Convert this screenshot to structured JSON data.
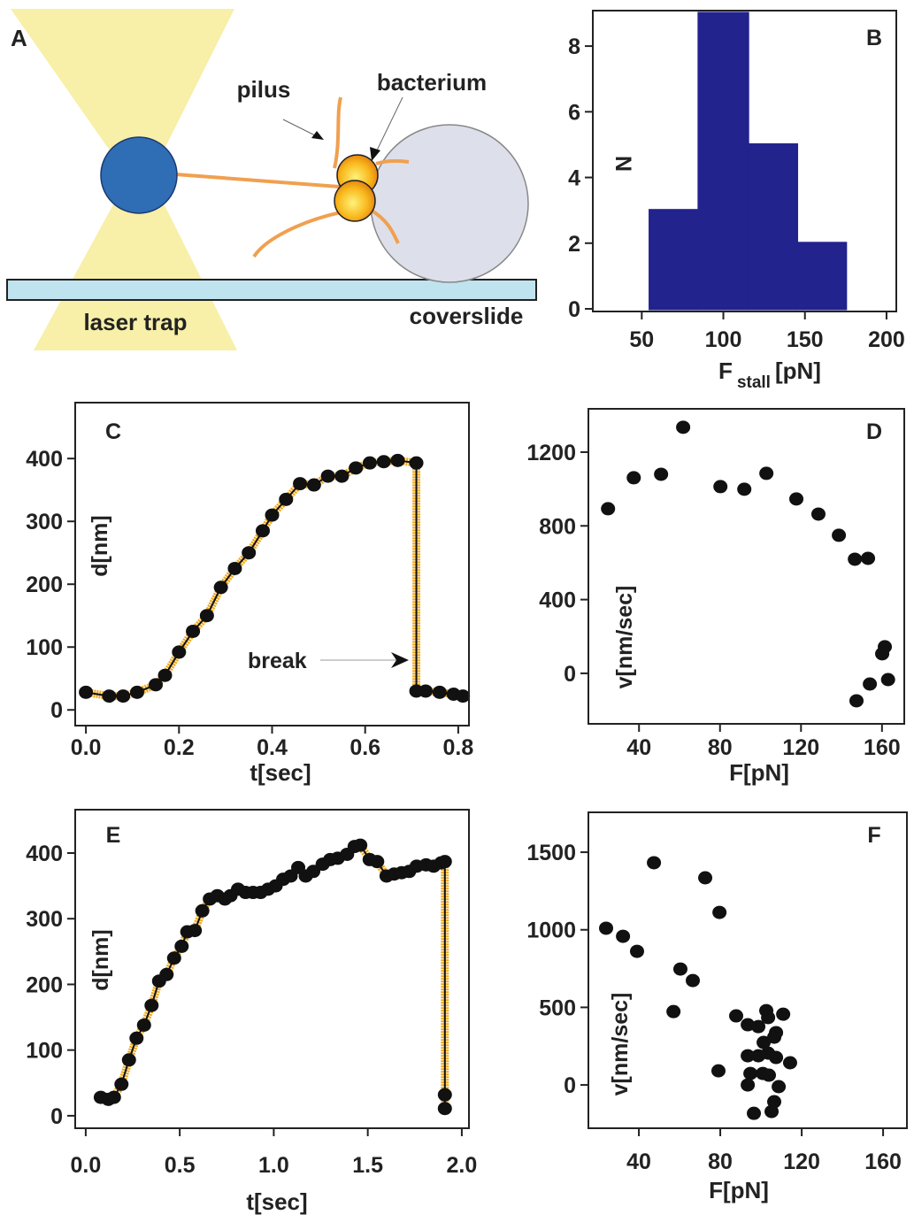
{
  "diagram": {
    "panel": "A",
    "labels": [
      "pilus",
      "bacterium",
      "laser trap",
      "coverslide"
    ]
  },
  "chart_data": [
    {
      "type": "histogram",
      "panel": "B",
      "ylabel": "N",
      "xlabel": [
        "F",
        "stall",
        "[pN]"
      ],
      "color": "#23238e",
      "bins": [
        25,
        55,
        85,
        115,
        145,
        175,
        205
      ],
      "values": [
        0,
        3,
        9,
        5,
        2,
        0
      ],
      "xlim": [
        20,
        206
      ],
      "ylim": [
        -0.08,
        9.08
      ],
      "xticks": [
        50,
        100,
        150,
        200
      ],
      "yticks": [
        0,
        2,
        4,
        6,
        8
      ]
    },
    {
      "type": "line",
      "panel": "C",
      "ylabel": "d[nm]",
      "xlabel": "t[sec]",
      "annotation": "break",
      "color": "#111111",
      "noise_color": "#f0a818",
      "x": [
        0,
        0.05,
        0.08,
        0.11,
        0.15,
        0.17,
        0.2,
        0.23,
        0.26,
        0.29,
        0.32,
        0.35,
        0.38,
        0.4,
        0.43,
        0.46,
        0.49,
        0.52,
        0.55,
        0.58,
        0.61,
        0.64,
        0.67,
        0.71,
        0.71,
        0.73,
        0.76,
        0.79,
        0.81
      ],
      "values": [
        28,
        22,
        22,
        28,
        40,
        55,
        92,
        125,
        150,
        195,
        225,
        250,
        285,
        310,
        335,
        360,
        358,
        372,
        372,
        385,
        393,
        395,
        397,
        393,
        30,
        30,
        28,
        25,
        22
      ],
      "xlim": [
        -0.023,
        0.823
      ],
      "ylim": [
        -25,
        489
      ],
      "xticks": [
        {
          "value": 0,
          "label": "0.0"
        },
        0.2,
        0.4,
        0.6,
        0.8
      ],
      "yticks": [
        0,
        100,
        200,
        300,
        400
      ]
    },
    {
      "type": "scatter",
      "panel": "D",
      "ylabel": "v[nm/sec]",
      "xlabel": "F[pN]",
      "color": "#111111",
      "x": [
        24.7,
        37.4,
        50.9,
        61.8,
        80.2,
        92,
        102.9,
        117.7,
        128.6,
        138.7,
        146.6,
        153.1,
        161.4,
        160.1,
        154,
        163,
        147.4
      ],
      "values": [
        893,
        1061,
        1080,
        1335,
        1013,
        999,
        1085,
        946,
        864,
        749,
        619,
        624,
        144,
        106,
        -58,
        -34,
        -149
      ],
      "xlim": [
        15,
        171
      ],
      "ylim": [
        -274,
        1435
      ],
      "xticks": [
        40,
        80,
        120,
        160
      ],
      "yticks": [
        0,
        400,
        800,
        1200
      ]
    },
    {
      "type": "line",
      "panel": "E",
      "ylabel": "d[nm]",
      "xlabel": "t[sec]",
      "color": "#111111",
      "noise_color": "#f0a818",
      "x": [
        0.08,
        0.12,
        0.15,
        0.19,
        0.23,
        0.27,
        0.31,
        0.35,
        0.39,
        0.43,
        0.47,
        0.51,
        0.54,
        0.58,
        0.62,
        0.66,
        0.7,
        0.74,
        0.77,
        0.81,
        0.85,
        0.89,
        0.93,
        0.97,
        1.01,
        1.05,
        1.09,
        1.13,
        1.17,
        1.21,
        1.26,
        1.3,
        1.34,
        1.39,
        1.43,
        1.46,
        1.51,
        1.55,
        1.6,
        1.64,
        1.68,
        1.72,
        1.76,
        1.81,
        1.85,
        1.89,
        1.91,
        1.91,
        1.91
      ],
      "values": [
        28,
        25,
        28,
        48,
        85,
        118,
        138,
        168,
        205,
        215,
        240,
        258,
        280,
        282,
        312,
        330,
        335,
        330,
        335,
        345,
        340,
        340,
        340,
        345,
        350,
        360,
        365,
        378,
        365,
        372,
        383,
        390,
        392,
        398,
        410,
        412,
        390,
        387,
        365,
        368,
        370,
        372,
        380,
        382,
        380,
        385,
        387,
        32,
        11
      ],
      "xlim": [
        -0.056,
        2.038
      ],
      "ylim": [
        -19,
        466
      ],
      "xticks": [
        {
          "value": 0,
          "label": "0.0"
        },
        0.5,
        {
          "value": 1,
          "label": "1.0"
        },
        1.5,
        {
          "value": 2,
          "label": "2.0"
        }
      ],
      "yticks": [
        0,
        100,
        200,
        300,
        400
      ]
    },
    {
      "type": "scatter",
      "panel": "F",
      "ylabel": "v[nm/sec]",
      "xlabel": "F[pN]",
      "color": "#111111",
      "x": [
        23.9,
        32.2,
        39.1,
        47.4,
        72.6,
        79.6,
        60.4,
        66.5,
        57,
        79.1,
        87.8,
        93.5,
        98.7,
        102.6,
        103.5,
        110.9,
        107.4,
        93.5,
        98.7,
        103.5,
        107.4,
        114.3,
        94.8,
        93.5,
        100.9,
        103.9,
        108.7,
        106.5,
        105.2,
        96.5,
        101.3,
        106.5
      ],
      "values": [
        1010,
        958,
        861,
        1432,
        1335,
        1112,
        747,
        673,
        473,
        91,
        445,
        388,
        376,
        479,
        434,
        456,
        337,
        188,
        188,
        205,
        177,
        143,
        74,
        0,
        74,
        63,
        -11,
        -108,
        -171,
        -183,
        274,
        308
      ],
      "xlim": [
        15.2,
        171.7
      ],
      "ylim": [
        -279,
        1757
      ],
      "xticks": [
        40,
        80,
        120,
        160
      ],
      "yticks": [
        0,
        500,
        1000,
        1500
      ]
    }
  ]
}
